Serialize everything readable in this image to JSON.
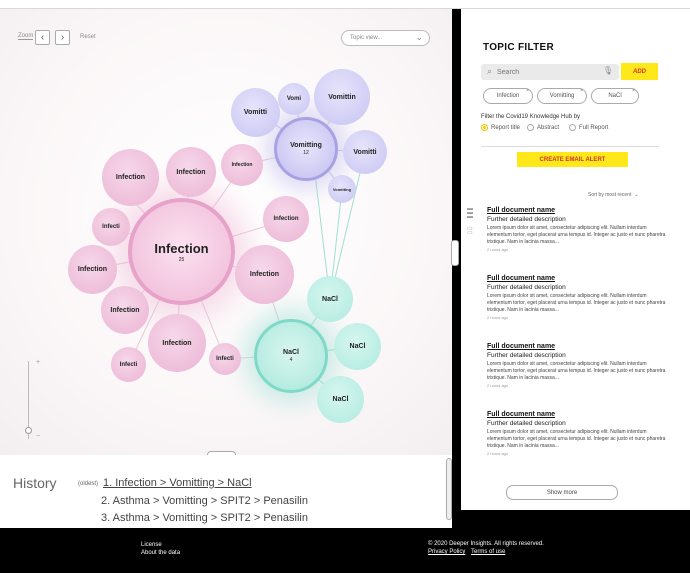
{
  "graph": {
    "zoom_label": "Zoom",
    "reset_label": "Reset",
    "topic_view_placeholder": "Topic view...",
    "bubbles": [
      {
        "label": "Infection",
        "count": "25"
      },
      {
        "label": "Vomitting",
        "count": "12"
      },
      {
        "label": "NaCl",
        "count": "4"
      },
      {
        "label": "Vomitti"
      },
      {
        "label": "Vomi"
      },
      {
        "label": "Vomittin"
      },
      {
        "label": "Vomitti"
      },
      {
        "label": "Infection"
      },
      {
        "label": "Vomitting"
      },
      {
        "label": "Infection"
      },
      {
        "label": "Infection"
      },
      {
        "label": "Infecti"
      },
      {
        "label": "Infection"
      },
      {
        "label": "Infection"
      },
      {
        "label": "Infection"
      },
      {
        "label": "Infection"
      },
      {
        "label": "Infecti"
      },
      {
        "label": "Infecti"
      },
      {
        "label": "NaCl"
      },
      {
        "label": "NaCl"
      },
      {
        "label": "NaCl"
      }
    ]
  },
  "history": {
    "title": "History",
    "oldest_label": "(oldest)",
    "items": [
      "1. Infection > Vomitting > NaCl",
      "2. Asthma > Vomitting > SPIT2 > Penasilin",
      "3. Asthma > Vomitting > SPIT2 > Penasilin"
    ]
  },
  "filter": {
    "title": "TOPIC FILTER",
    "search_placeholder": "Search",
    "add_label": "ADD",
    "chips": [
      "Infection",
      "Vomitting",
      "NaCl"
    ],
    "filter_by_label": "Filter the Covid19 Knowledge Hub by",
    "options": [
      "Report title",
      "Abstract",
      "Full Report"
    ],
    "selected_option": "Report title",
    "alert_label": "CREATE EMAIL ALERT",
    "sort_label": "Sort by most recent"
  },
  "documents": [
    {
      "title": "Full document name",
      "desc": "Further detailed description",
      "body": "Lorem ipsum dolor sit amet, consectetur adipiscing elit. Nullam interdum elementum tortor, eget placerat urna tempus id. Integer ac justo et nunc pharetra tristique. Nam in lacinia massa...",
      "time": "2 hours ago"
    },
    {
      "title": "Full document name",
      "desc": "Further detailed description",
      "body": "Lorem ipsum dolor sit amet, consectetur adipiscing elit. Nullam interdum elementum tortor, eget placerat urna tempus id. Integer ac justo et nunc pharetra tristique. Nam in lacinia massa...",
      "time": "2 hours ago"
    },
    {
      "title": "Full document name",
      "desc": "Further detailed description",
      "body": "Lorem ipsum dolor sit amet, consectetur adipiscing elit. Nullam interdum elementum tortor, eget placerat urna tempus id. Integer ac justo et nunc pharetra tristique. Nam in lacinia massa...",
      "time": "2 hours ago"
    },
    {
      "title": "Full document name",
      "desc": "Further detailed description",
      "body": "Lorem ipsum dolor sit amet, consectetur adipiscing elit. Nullam interdum elementum tortor, eget placerat urna tempus id. Integer ac justo et nunc pharetra tristique. Nam in lacinia massa...",
      "time": "2 hours ago"
    }
  ],
  "show_more_label": "Show more",
  "footer": {
    "license": "License",
    "about": "About the data",
    "copyright": "© 2020 Deeper Insights. All rights reserved.",
    "privacy": "Privacy Policy",
    "terms": "Terms of use"
  },
  "colors": {
    "accent_yellow": "#ffe81a",
    "infection": "#ebb3d3",
    "vomitting": "#c7c4f2",
    "nacl": "#aeeadf"
  }
}
